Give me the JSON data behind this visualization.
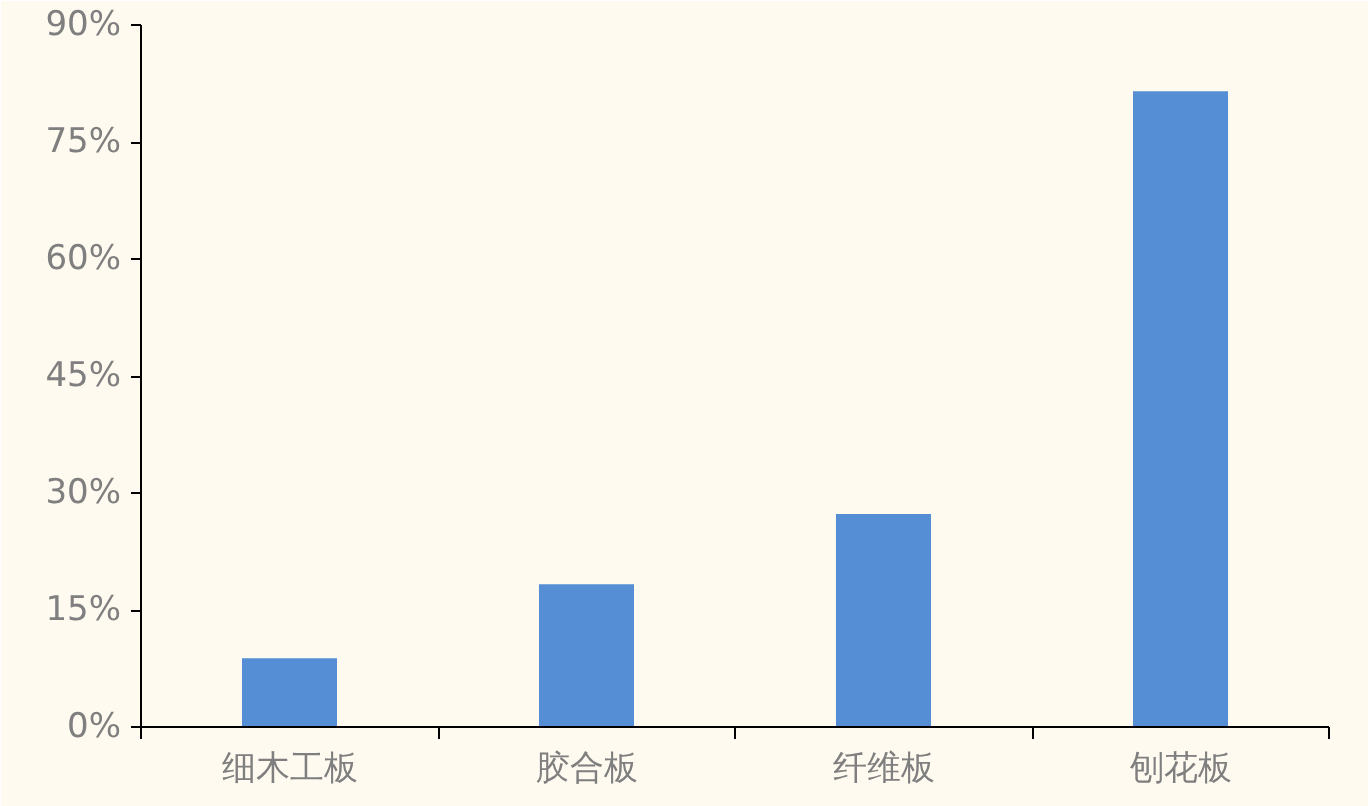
{
  "chart_data": {
    "type": "bar",
    "categories": [
      "细木工板",
      "胶合板",
      "纤维板",
      "刨花板"
    ],
    "values": [
      8.8,
      18.3,
      27.3,
      81.5
    ],
    "color": "#558ed5",
    "ylim": [
      0,
      90
    ],
    "yticks": [
      {
        "value": 0,
        "label": "0%"
      },
      {
        "value": 15,
        "label": "15%"
      },
      {
        "value": 30,
        "label": "30%"
      },
      {
        "value": 45,
        "label": "45%"
      },
      {
        "value": 60,
        "label": "60%"
      },
      {
        "value": 75,
        "label": "75%"
      },
      {
        "value": 90,
        "label": "90%"
      }
    ],
    "grid": false
  }
}
